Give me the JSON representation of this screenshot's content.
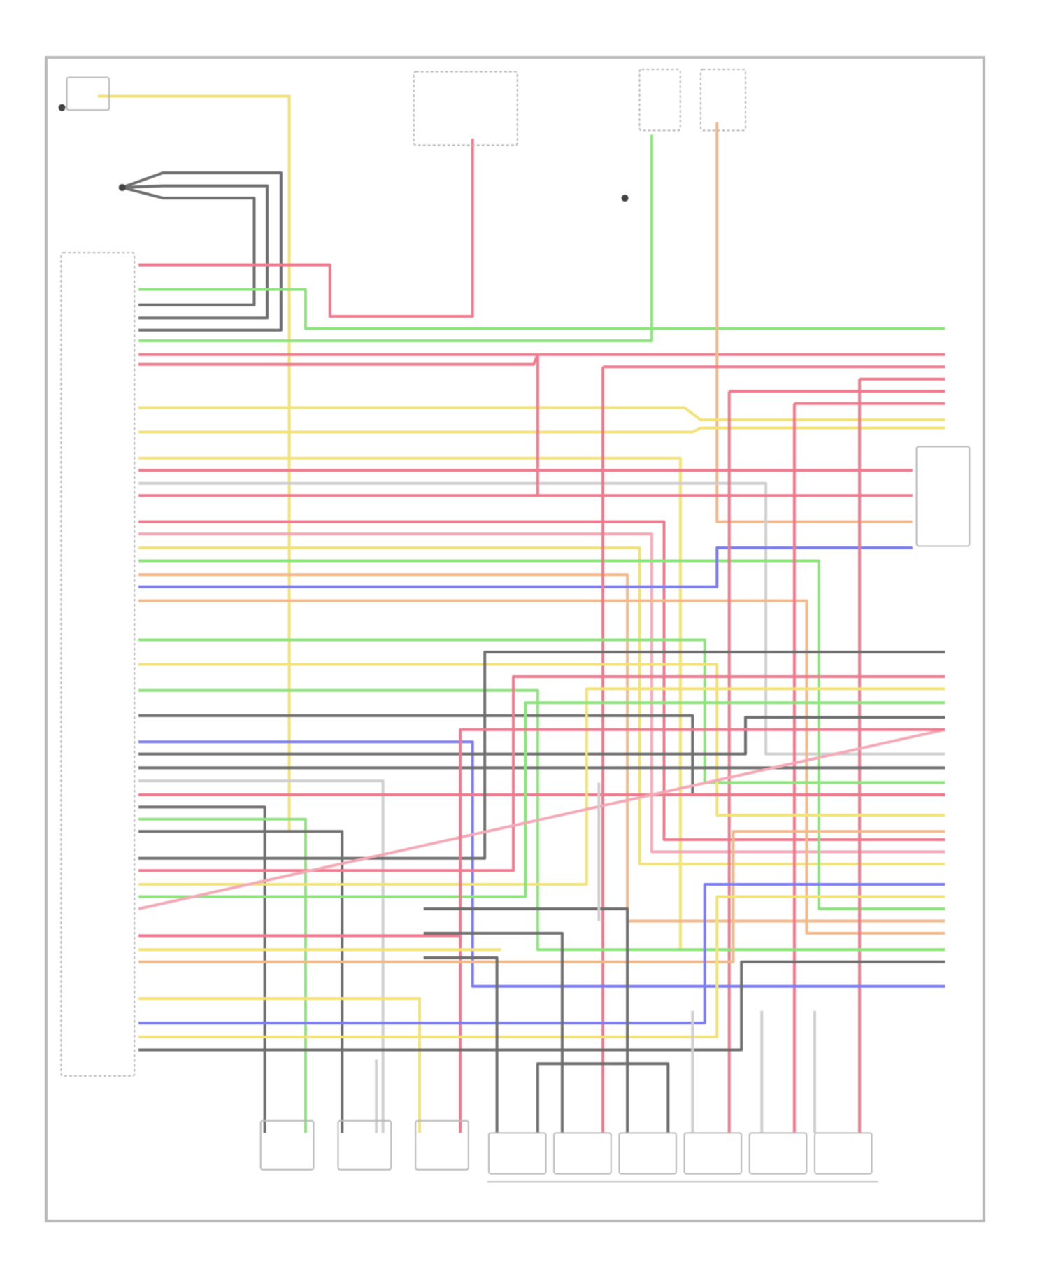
{
  "diagram": {
    "type": "wiring-diagram",
    "wire_colors": {
      "red": "#f07a8e",
      "pink": "#f4a9b6",
      "yellow": "#f2e27a",
      "green": "#8fe37f",
      "gray": "#6f6f6f",
      "lightgray": "#cfcfcf",
      "blue": "#7d7df2",
      "orange": "#f2b98a",
      "frame": "#b9b9b9"
    },
    "components": {
      "ecm": "engine-control-module",
      "top_left_switch": "switch",
      "top_left_sensor": "sensor",
      "ignition_switch": "ignition-switch",
      "relays": [
        "relay",
        "relay"
      ],
      "right_sensor": "sensor",
      "bottom_sensors": [
        "sensor",
        "sensor",
        "sensor"
      ],
      "fuel_injectors": [
        "injector",
        "injector",
        "injector",
        "injector",
        "injector",
        "injector"
      ]
    }
  }
}
